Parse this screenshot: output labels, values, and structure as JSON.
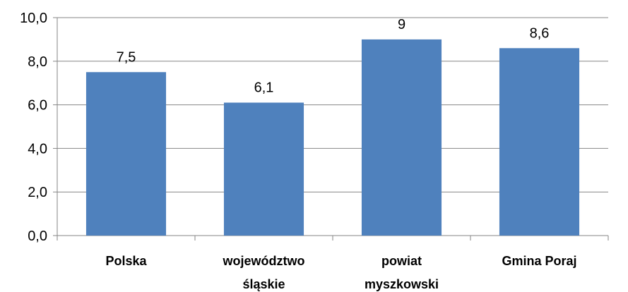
{
  "chart_data": {
    "type": "bar",
    "categories": [
      [
        "Polska"
      ],
      [
        "województwo",
        "śląskie"
      ],
      [
        "powiat",
        "myszkowski"
      ],
      [
        "Gmina Poraj"
      ]
    ],
    "values": [
      7.5,
      6.1,
      9,
      8.6
    ],
    "data_labels": [
      "7,5",
      "6,1",
      "9",
      "8,6"
    ],
    "ylim": [
      0,
      10
    ],
    "yticks": [
      0,
      2,
      4,
      6,
      8,
      10
    ],
    "ytick_labels": [
      "0,0",
      "2,0",
      "4,0",
      "6,0",
      "8,0",
      "10,0"
    ],
    "title": "",
    "xlabel": "",
    "ylabel": "",
    "grid": true,
    "legend": "none",
    "colors": {
      "bar": "#4F81BD",
      "grid": "#868686",
      "axis": "#868686"
    }
  }
}
